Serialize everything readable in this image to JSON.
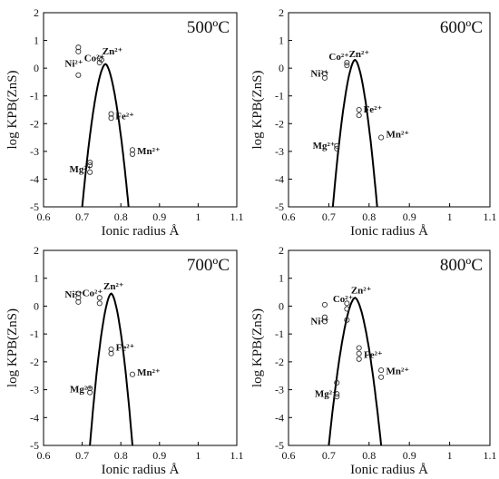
{
  "chart_data": [
    {
      "type": "scatter",
      "title": "500ºC",
      "xlabel": "Ionic radius Å",
      "ylabel": "log KPB(ZnS)",
      "xlim": [
        0.6,
        1.1
      ],
      "ylim": [
        -5,
        2
      ],
      "xticks": [
        "0.6",
        "0.7",
        "0.8",
        "0.9",
        "1",
        "1.1"
      ],
      "yticks": [
        "2",
        "1",
        "0",
        "-1",
        "-2",
        "-3",
        "-4",
        "-5"
      ],
      "curve": {
        "apex_x": 0.76,
        "apex_y": 0.15,
        "left_x_at_min": 0.7,
        "right_x_at_min": 0.82
      },
      "points": [
        {
          "x": 0.69,
          "y": 0.75
        },
        {
          "x": 0.69,
          "y": 0.6
        },
        {
          "x": 0.69,
          "y": -0.25
        },
        {
          "x": 0.745,
          "y": 0.35
        },
        {
          "x": 0.745,
          "y": 0.2
        },
        {
          "x": 0.75,
          "y": 0.3
        },
        {
          "x": 0.775,
          "y": -1.65
        },
        {
          "x": 0.775,
          "y": -1.8
        },
        {
          "x": 0.83,
          "y": -2.95
        },
        {
          "x": 0.83,
          "y": -3.1
        },
        {
          "x": 0.72,
          "y": -3.4
        },
        {
          "x": 0.72,
          "y": -3.5
        },
        {
          "x": 0.72,
          "y": -3.75
        }
      ],
      "labels": [
        {
          "text": "Ni²⁺",
          "x": 0.655,
          "y": 0.05
        },
        {
          "text": "Co²⁺",
          "x": 0.705,
          "y": 0.25
        },
        {
          "text": "Zn²⁺",
          "x": 0.752,
          "y": 0.5
        },
        {
          "text": "Fe²⁺",
          "x": 0.786,
          "y": -1.85
        },
        {
          "text": "Mn²⁺",
          "x": 0.842,
          "y": -3.1
        },
        {
          "text": "Mg²⁺",
          "x": 0.667,
          "y": -3.75
        }
      ]
    },
    {
      "type": "scatter",
      "title": "600ºC",
      "xlabel": "Ionic radius Å",
      "ylabel": "log KPB(ZnS)",
      "xlim": [
        0.6,
        1.1
      ],
      "ylim": [
        -5,
        2
      ],
      "xticks": [
        "0.6",
        "0.7",
        "0.8",
        "0.9",
        "1",
        "1.1"
      ],
      "yticks": [
        "2",
        "1",
        "0",
        "-1",
        "-2",
        "-3",
        "-4",
        "-5"
      ],
      "curve": {
        "apex_x": 0.765,
        "apex_y": 0.3,
        "left_x_at_min": 0.71,
        "right_x_at_min": 0.82
      },
      "points": [
        {
          "x": 0.69,
          "y": -0.2
        },
        {
          "x": 0.69,
          "y": -0.35
        },
        {
          "x": 0.745,
          "y": 0.2
        },
        {
          "x": 0.745,
          "y": 0.1
        },
        {
          "x": 0.775,
          "y": -1.5
        },
        {
          "x": 0.775,
          "y": -1.7
        },
        {
          "x": 0.83,
          "y": -2.5
        },
        {
          "x": 0.72,
          "y": -2.8
        },
        {
          "x": 0.72,
          "y": -2.9
        }
      ],
      "labels": [
        {
          "text": "Ni²⁺",
          "x": 0.655,
          "y": -0.3
        },
        {
          "text": "Co²⁺",
          "x": 0.7,
          "y": 0.3
        },
        {
          "text": "Zn²⁺",
          "x": 0.75,
          "y": 0.4
        },
        {
          "text": "Fe²⁺",
          "x": 0.786,
          "y": -1.6
        },
        {
          "text": "Mn²⁺",
          "x": 0.842,
          "y": -2.5
        },
        {
          "text": "Mg²⁺",
          "x": 0.66,
          "y": -2.9
        }
      ]
    },
    {
      "type": "scatter",
      "title": "700ºC",
      "xlabel": "Ionic radius Å",
      "ylabel": "log KPB(ZnS)",
      "xlim": [
        0.6,
        1.1
      ],
      "ylim": [
        -5,
        2
      ],
      "xticks": [
        "0.6",
        "0.7",
        "0.8",
        "0.9",
        "1",
        "1.1"
      ],
      "yticks": [
        "2",
        "1",
        "0",
        "-1",
        "-2",
        "-3",
        "-4",
        "-5"
      ],
      "curve": {
        "apex_x": 0.775,
        "apex_y": 0.45,
        "left_x_at_min": 0.72,
        "right_x_at_min": 0.83
      },
      "points": [
        {
          "x": 0.69,
          "y": 0.45
        },
        {
          "x": 0.69,
          "y": 0.3
        },
        {
          "x": 0.69,
          "y": 0.15
        },
        {
          "x": 0.745,
          "y": 0.3
        },
        {
          "x": 0.745,
          "y": 0.1
        },
        {
          "x": 0.775,
          "y": -1.55
        },
        {
          "x": 0.775,
          "y": -1.7
        },
        {
          "x": 0.83,
          "y": -2.45
        },
        {
          "x": 0.72,
          "y": -2.95
        },
        {
          "x": 0.72,
          "y": -3.1
        }
      ],
      "labels": [
        {
          "text": "Ni²⁺",
          "x": 0.655,
          "y": 0.3
        },
        {
          "text": "Co²⁺",
          "x": 0.7,
          "y": 0.35
        },
        {
          "text": "Zn²⁺",
          "x": 0.755,
          "y": 0.6
        },
        {
          "text": "Fe²⁺",
          "x": 0.787,
          "y": -1.6
        },
        {
          "text": "Mn²⁺",
          "x": 0.842,
          "y": -2.5
        },
        {
          "text": "Mg²⁺",
          "x": 0.668,
          "y": -3.1
        }
      ]
    },
    {
      "type": "scatter",
      "title": "800ºC",
      "xlabel": "Ionic radius Å",
      "ylabel": "log KPB(ZnS)",
      "xlim": [
        0.6,
        1.1
      ],
      "ylim": [
        -5,
        2
      ],
      "xticks": [
        "0.6",
        "0.7",
        "0.8",
        "0.9",
        "1",
        "1.1"
      ],
      "yticks": [
        "2",
        "1",
        "0",
        "-1",
        "-2",
        "-3",
        "-4",
        "-5"
      ],
      "curve": {
        "apex_x": 0.765,
        "apex_y": 0.3,
        "left_x_at_min": 0.7,
        "right_x_at_min": 0.83
      },
      "points": [
        {
          "x": 0.69,
          "y": 0.05
        },
        {
          "x": 0.69,
          "y": -0.4
        },
        {
          "x": 0.69,
          "y": -0.55
        },
        {
          "x": 0.745,
          "y": 0.1
        },
        {
          "x": 0.745,
          "y": -0.1
        },
        {
          "x": 0.745,
          "y": -0.5
        },
        {
          "x": 0.775,
          "y": -1.5
        },
        {
          "x": 0.775,
          "y": -1.7
        },
        {
          "x": 0.775,
          "y": -1.9
        },
        {
          "x": 0.83,
          "y": -2.3
        },
        {
          "x": 0.83,
          "y": -2.55
        },
        {
          "x": 0.72,
          "y": -2.75
        },
        {
          "x": 0.72,
          "y": -3.15
        },
        {
          "x": 0.72,
          "y": -3.25
        }
      ],
      "labels": [
        {
          "text": "Ni²⁺",
          "x": 0.655,
          "y": -0.65
        },
        {
          "text": "Co²⁺",
          "x": 0.71,
          "y": 0.15
        },
        {
          "text": "Zn²⁺",
          "x": 0.755,
          "y": 0.45
        },
        {
          "text": "Fe²⁺",
          "x": 0.787,
          "y": -1.85
        },
        {
          "text": "Mn²⁺",
          "x": 0.842,
          "y": -2.45
        },
        {
          "text": "Mg²⁺",
          "x": 0.665,
          "y": -3.25
        }
      ]
    }
  ]
}
